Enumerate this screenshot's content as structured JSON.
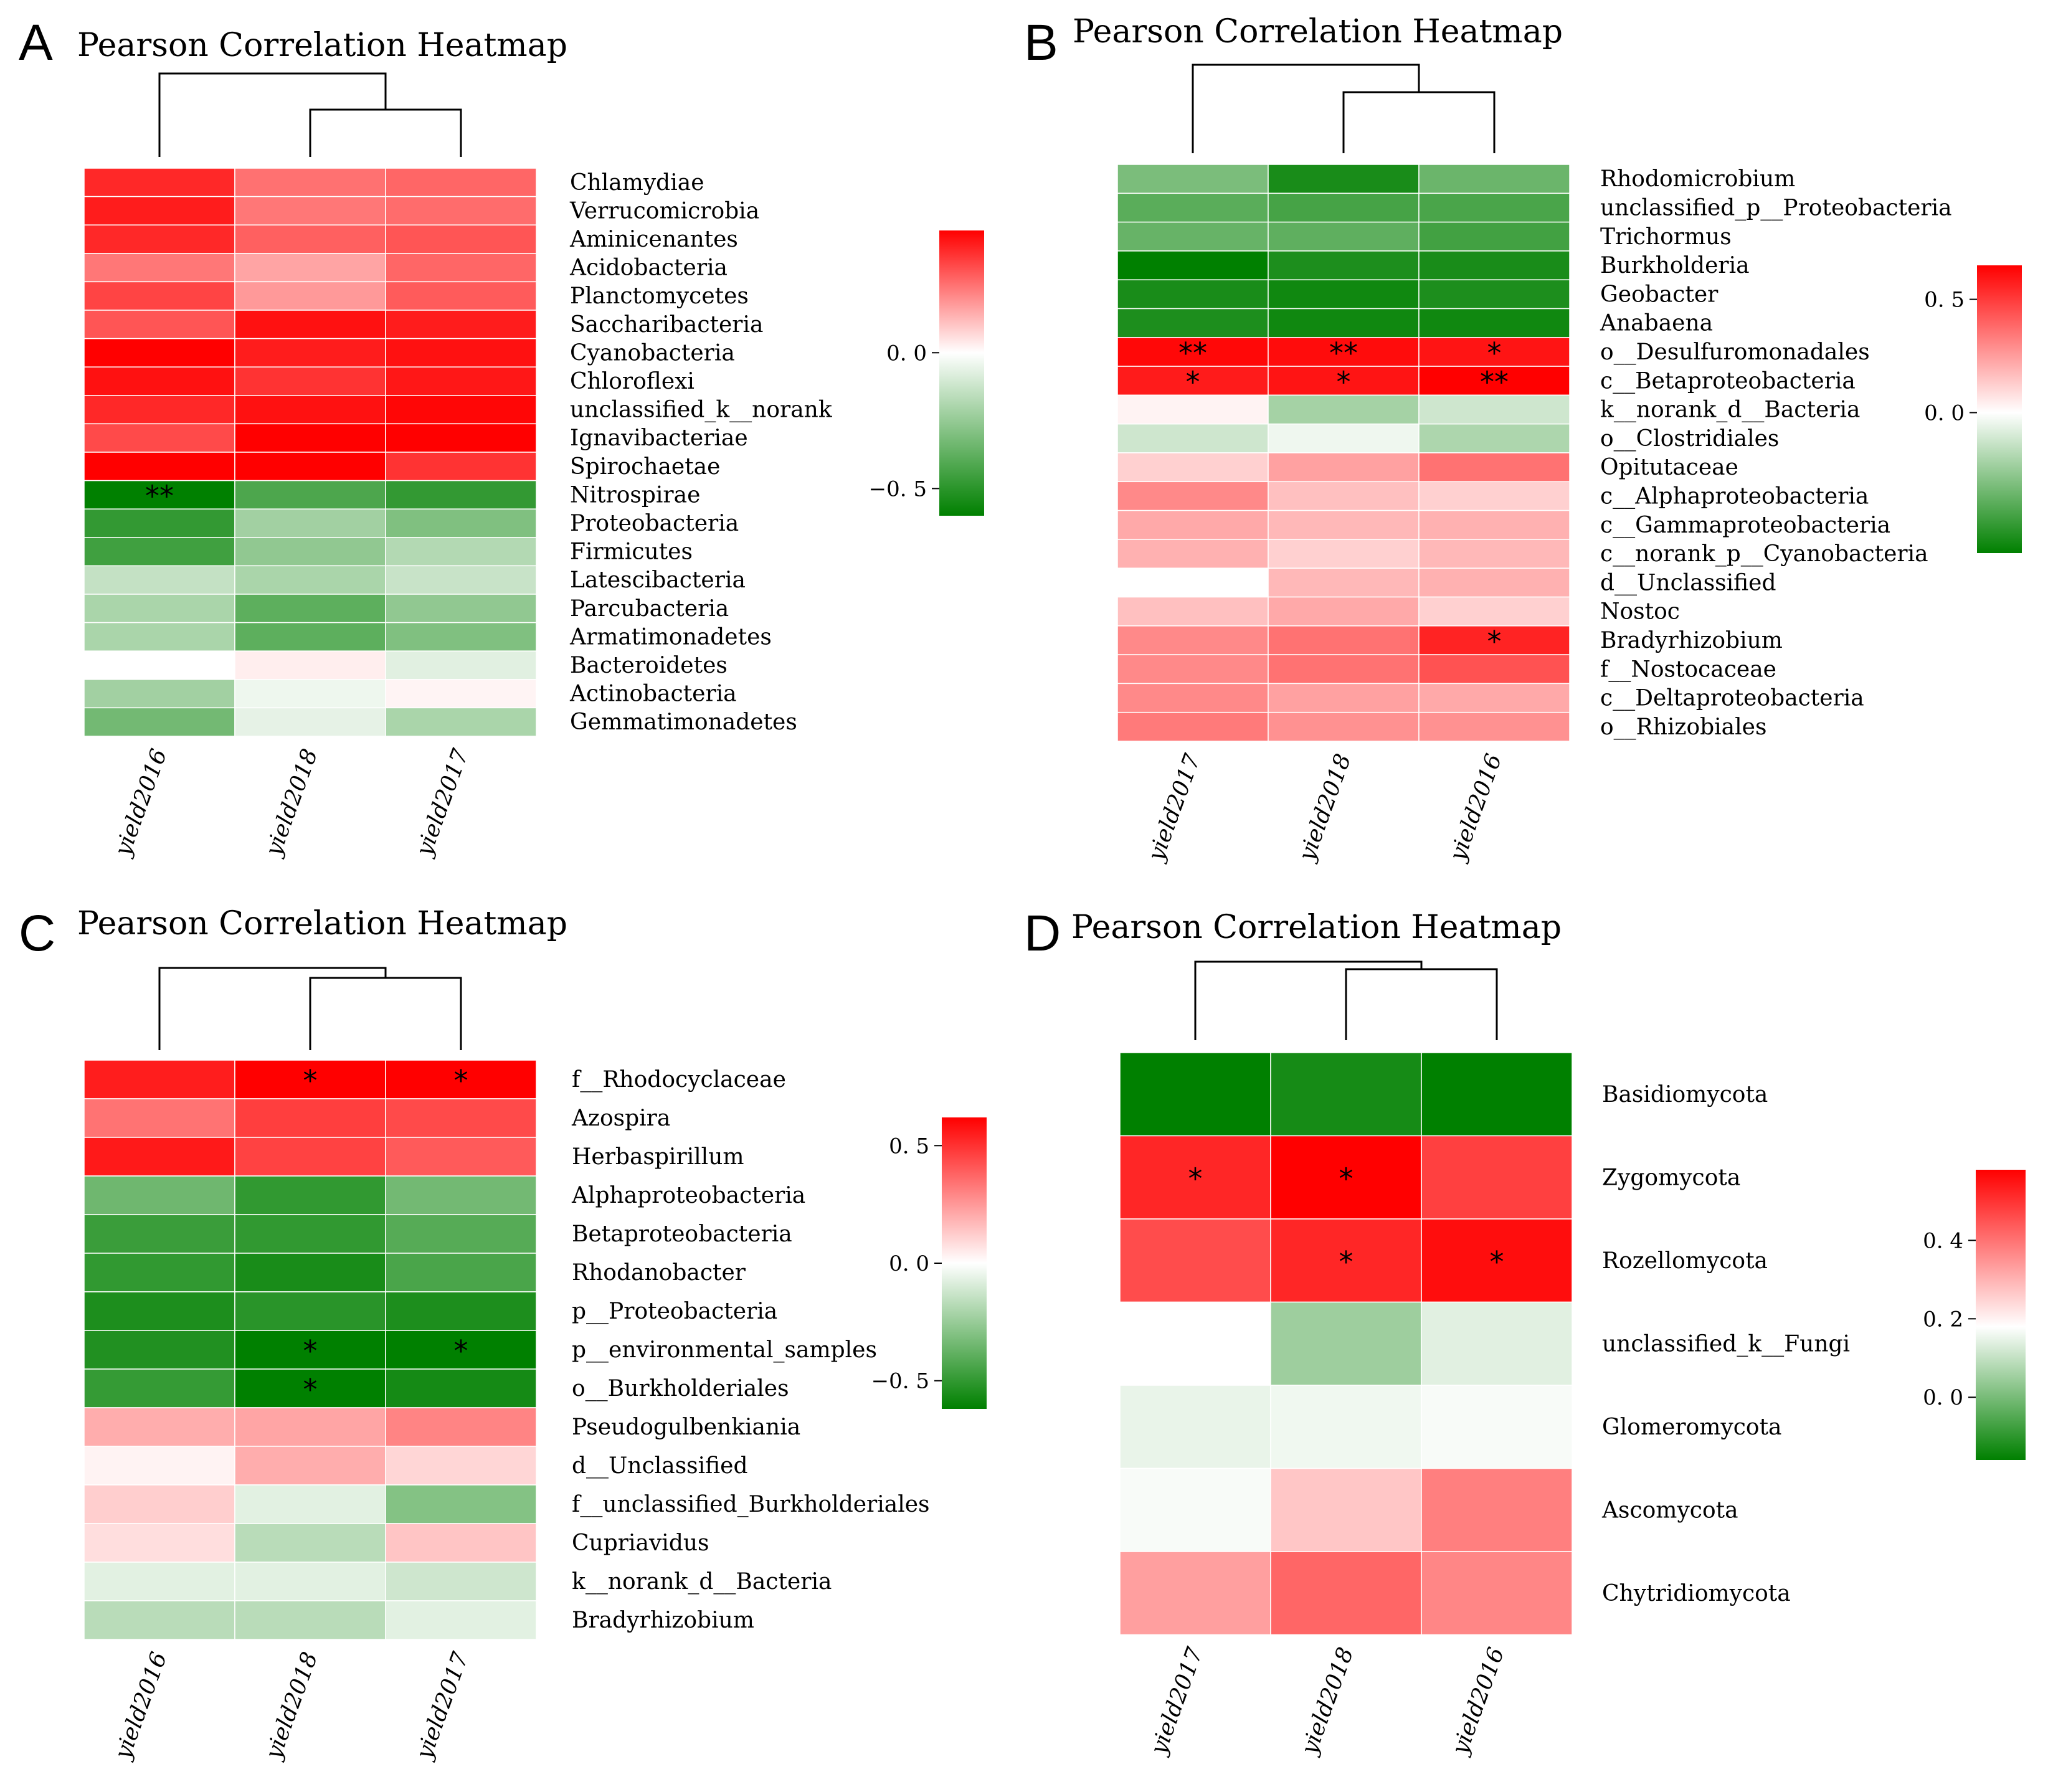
{
  "figure": {
    "panels": [
      {
        "letter": "A",
        "chart_data": {
          "type": "heatmap",
          "title": "Pearson Correlation Heatmap",
          "columns": [
            "yield2016",
            "yield2018",
            "yield2017"
          ],
          "rows": [
            "Chlamydiae",
            "Verrucomicrobia",
            "Aminicenantes",
            "Acidobacteria",
            "Planctomycetes",
            "Saccharibacteria",
            "Cyanobacteria",
            "Chloroflexi",
            "unclassified_k__norank",
            "Ignavibacteriae",
            "Spirochaetae",
            "Nitrospirae",
            "Proteobacteria",
            "Firmicutes",
            "Latescibacteria",
            "Parcubacteria",
            "Armatimonadetes",
            "Bacteroidetes",
            "Actinobacteria",
            "Gemmatimonadetes"
          ],
          "values": [
            [
              0.38,
              0.25,
              0.27
            ],
            [
              0.4,
              0.24,
              0.26
            ],
            [
              0.38,
              0.28,
              0.3
            ],
            [
              0.24,
              0.16,
              0.27
            ],
            [
              0.33,
              0.18,
              0.29
            ],
            [
              0.3,
              0.42,
              0.4
            ],
            [
              0.45,
              0.4,
              0.42
            ],
            [
              0.42,
              0.36,
              0.41
            ],
            [
              0.38,
              0.42,
              0.44
            ],
            [
              0.32,
              0.48,
              0.47
            ],
            [
              0.47,
              0.47,
              0.36
            ],
            [
              -0.6,
              -0.42,
              -0.48
            ],
            [
              -0.48,
              -0.22,
              -0.3
            ],
            [
              -0.45,
              -0.26,
              -0.18
            ],
            [
              -0.14,
              -0.2,
              -0.13
            ],
            [
              -0.2,
              -0.38,
              -0.26
            ],
            [
              -0.2,
              -0.38,
              -0.3
            ],
            [
              0.0,
              0.03,
              -0.07
            ],
            [
              -0.22,
              -0.04,
              0.02
            ],
            [
              -0.33,
              -0.06,
              -0.2
            ]
          ],
          "significance": [
            [
              "",
              "",
              ""
            ],
            [
              "",
              "",
              ""
            ],
            [
              "",
              "",
              ""
            ],
            [
              "",
              "",
              ""
            ],
            [
              "",
              "",
              ""
            ],
            [
              "",
              "",
              ""
            ],
            [
              "",
              "",
              ""
            ],
            [
              "",
              "",
              ""
            ],
            [
              "",
              "",
              ""
            ],
            [
              "",
              "",
              ""
            ],
            [
              "",
              "",
              ""
            ],
            [
              "**",
              "",
              ""
            ],
            [
              "",
              "",
              ""
            ],
            [
              "",
              "",
              ""
            ],
            [
              "",
              "",
              ""
            ],
            [
              "",
              "",
              ""
            ],
            [
              "",
              "",
              ""
            ],
            [
              "",
              "",
              ""
            ],
            [
              "",
              "",
              ""
            ],
            [
              "",
              "",
              ""
            ]
          ],
          "colorbar": {
            "min": -0.6,
            "max": 0.45,
            "ticks": [
              0.0,
              -0.5
            ],
            "tick_labels": [
              "0. 0",
              "−0. 5"
            ]
          },
          "colors": {
            "high": "#ff0000",
            "mid": "#ffffff",
            "low": "#008000"
          }
        }
      },
      {
        "letter": "B",
        "chart_data": {
          "type": "heatmap",
          "title": "Pearson Correlation Heatmap",
          "columns": [
            "yield2017",
            "yield2018",
            "yield2016"
          ],
          "rows": [
            "Rhodomicrobium",
            "unclassified_p__Proteobacteria",
            "Trichormus",
            "Burkholderia",
            "Geobacter",
            "Anabaena",
            "o__Desulfuromonadales",
            "c__Betaproteobacteria",
            "k__norank_d__Bacteria",
            "o__Clostridiales",
            "Opitutaceae",
            "c__Alphaproteobacteria",
            "c__Gammaproteobacteria",
            "c__norank_p__Cyanobacteria",
            "d__Unclassified",
            "Nostoc",
            "Bradyrhizobium",
            "f__Nostocaceae",
            "c__Deltaproteobacteria",
            "o__Rhizobiales"
          ],
          "values": [
            [
              -0.32,
              -0.56,
              -0.36
            ],
            [
              -0.4,
              -0.45,
              -0.44
            ],
            [
              -0.37,
              -0.39,
              -0.46
            ],
            [
              -0.62,
              -0.55,
              -0.56
            ],
            [
              -0.56,
              -0.58,
              -0.55
            ],
            [
              -0.55,
              -0.58,
              -0.58
            ],
            [
              0.63,
              0.62,
              0.6
            ],
            [
              0.58,
              0.6,
              0.65
            ],
            [
              0.03,
              -0.22,
              -0.12
            ],
            [
              -0.12,
              -0.04,
              -0.2
            ],
            [
              0.12,
              0.24,
              0.36
            ],
            [
              0.3,
              0.16,
              0.12
            ],
            [
              0.22,
              0.18,
              0.2
            ],
            [
              0.2,
              0.12,
              0.18
            ],
            [
              0.0,
              0.18,
              0.2
            ],
            [
              0.16,
              0.22,
              0.12
            ],
            [
              0.3,
              0.36,
              0.56
            ],
            [
              0.3,
              0.36,
              0.44
            ],
            [
              0.3,
              0.24,
              0.22
            ],
            [
              0.34,
              0.28,
              0.28
            ]
          ],
          "significance": [
            [
              "",
              "",
              ""
            ],
            [
              "",
              "",
              ""
            ],
            [
              "",
              "",
              ""
            ],
            [
              "",
              "",
              ""
            ],
            [
              "",
              "",
              ""
            ],
            [
              "",
              "",
              ""
            ],
            [
              "**",
              "**",
              "*"
            ],
            [
              "*",
              "*",
              "**"
            ],
            [
              "",
              "",
              ""
            ],
            [
              "",
              "",
              ""
            ],
            [
              "",
              "",
              ""
            ],
            [
              "",
              "",
              ""
            ],
            [
              "",
              "",
              ""
            ],
            [
              "",
              "",
              ""
            ],
            [
              "",
              "",
              ""
            ],
            [
              "",
              "",
              ""
            ],
            [
              "",
              "",
              "*"
            ],
            [
              "",
              "",
              ""
            ],
            [
              "",
              "",
              ""
            ],
            [
              "",
              "",
              ""
            ]
          ],
          "colorbar": {
            "min": -0.62,
            "max": 0.65,
            "ticks": [
              0.5,
              0.0
            ],
            "tick_labels": [
              "0. 5",
              "0. 0"
            ]
          },
          "colors": {
            "high": "#ff0000",
            "mid": "#ffffff",
            "low": "#008000"
          }
        }
      },
      {
        "letter": "C",
        "chart_data": {
          "type": "heatmap",
          "title": "Pearson Correlation Heatmap",
          "columns": [
            "yield2016",
            "yield2018",
            "yield2017"
          ],
          "rows": [
            "f__Rhodocyclaceae",
            "Azospira",
            "Herbaspirillum",
            "Alphaproteobacteria",
            "Betaproteobacteria",
            "Rhodanobacter",
            "p__Proteobacteria",
            "p__environmental_samples",
            "o__Burkholderiales",
            "Pseudogulbenkiania",
            "d__Unclassified",
            "f__unclassified_Burkholderiales",
            "Cupriavidus",
            "k__norank_d__Bacteria",
            "Bradyrhizobium"
          ],
          "values": [
            [
              0.55,
              0.62,
              0.62
            ],
            [
              0.34,
              0.47,
              0.44
            ],
            [
              0.56,
              0.46,
              0.4
            ],
            [
              -0.35,
              -0.5,
              -0.34
            ],
            [
              -0.48,
              -0.5,
              -0.41
            ],
            [
              -0.5,
              -0.56,
              -0.44
            ],
            [
              -0.55,
              -0.52,
              -0.55
            ],
            [
              -0.54,
              -0.62,
              -0.62
            ],
            [
              -0.49,
              -0.62,
              -0.57
            ],
            [
              0.2,
              0.22,
              0.3
            ],
            [
              0.03,
              0.2,
              0.1
            ],
            [
              0.12,
              -0.07,
              -0.3
            ],
            [
              0.08,
              -0.17,
              0.14
            ],
            [
              -0.07,
              -0.07,
              -0.12
            ],
            [
              -0.17,
              -0.17,
              -0.07
            ]
          ],
          "significance": [
            [
              "",
              "*",
              "*"
            ],
            [
              "",
              "",
              ""
            ],
            [
              "",
              "",
              ""
            ],
            [
              "",
              "",
              ""
            ],
            [
              "",
              "",
              ""
            ],
            [
              "",
              "",
              ""
            ],
            [
              "",
              "",
              ""
            ],
            [
              "",
              "*",
              "*"
            ],
            [
              "",
              "*",
              ""
            ],
            [
              "",
              "",
              ""
            ],
            [
              "",
              "",
              ""
            ],
            [
              "",
              "",
              ""
            ],
            [
              "",
              "",
              ""
            ],
            [
              "",
              "",
              ""
            ],
            [
              "",
              "",
              ""
            ]
          ],
          "colorbar": {
            "min": -0.62,
            "max": 0.62,
            "ticks": [
              0.5,
              0.0,
              -0.5
            ],
            "tick_labels": [
              "0. 5",
              "0. 0",
              "−0. 5"
            ]
          },
          "colors": {
            "high": "#ff0000",
            "mid": "#ffffff",
            "low": "#008000"
          }
        }
      },
      {
        "letter": "D",
        "chart_data": {
          "type": "heatmap",
          "title": "Pearson Correlation Heatmap",
          "columns": [
            "yield2017",
            "yield2018",
            "yield2016"
          ],
          "rows": [
            "Basidiomycota",
            "Zygomycota",
            "Rozellomycota",
            "unclassified_k__Fungi",
            "Glomeromycota",
            "Ascomycota",
            "Chytridiomycota"
          ],
          "values": [
            [
              -0.16,
              -0.13,
              -0.16
            ],
            [
              0.52,
              0.58,
              0.48
            ],
            [
              0.46,
              0.52,
              0.56
            ],
            [
              0.18,
              0.05,
              0.14
            ],
            [
              0.15,
              0.16,
              0.17
            ],
            [
              0.17,
              0.27,
              0.38
            ],
            [
              0.33,
              0.42,
              0.37
            ]
          ],
          "significance": [
            [
              "",
              "",
              ""
            ],
            [
              "*",
              "*",
              ""
            ],
            [
              "",
              "*",
              "*"
            ],
            [
              "",
              "",
              ""
            ],
            [
              "",
              "",
              ""
            ],
            [
              "",
              "",
              ""
            ],
            [
              "",
              "",
              ""
            ]
          ],
          "colorbar": {
            "min": -0.16,
            "max": 0.58,
            "mid": 0.18,
            "ticks": [
              0.4,
              0.2,
              0.0
            ],
            "tick_labels": [
              "0. 4",
              "0. 2",
              "0. 0"
            ]
          },
          "colors": {
            "high": "#ff0000",
            "mid": "#ffffff",
            "low": "#008000"
          }
        }
      }
    ]
  }
}
